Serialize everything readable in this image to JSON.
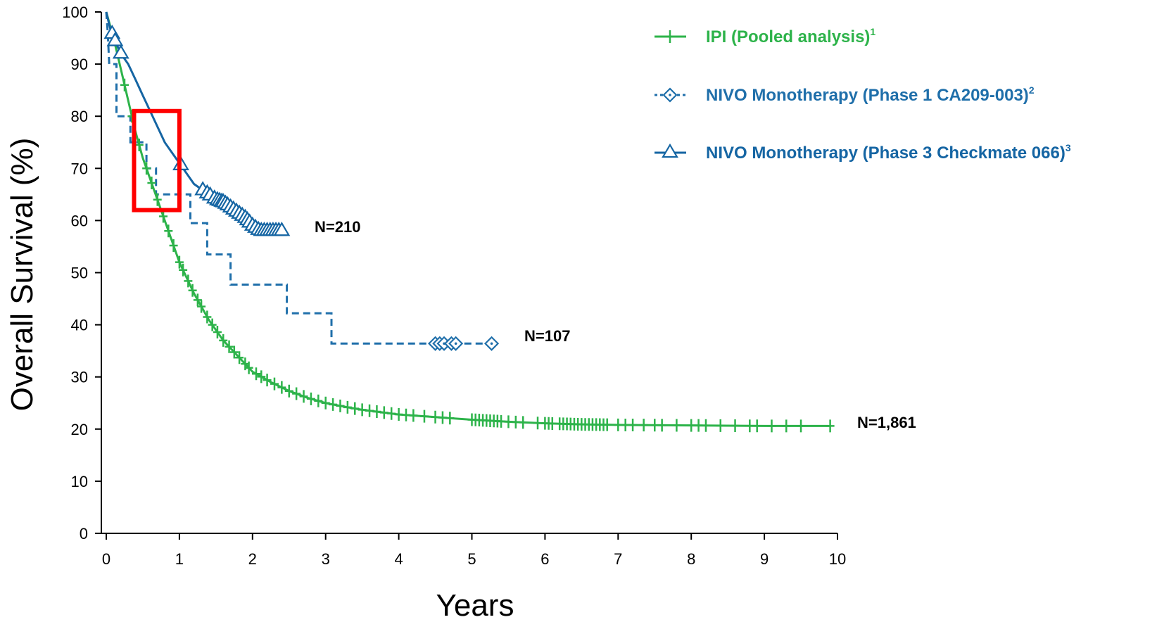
{
  "chart_data": {
    "type": "line",
    "xlabel": "Years",
    "ylabel": "Overall Survival (%)",
    "xlim": [
      0,
      10
    ],
    "ylim": [
      0,
      100
    ],
    "xticks": [
      "0",
      "1",
      "2",
      "3",
      "4",
      "5",
      "6",
      "7",
      "8",
      "9",
      "10"
    ],
    "yticks": [
      "0",
      "10",
      "20",
      "30",
      "40",
      "50",
      "60",
      "70",
      "80",
      "90",
      "100"
    ],
    "grid": false,
    "legend_position": "top-right",
    "series": [
      {
        "name": "IPI (Pooled analysis)",
        "superscript": "1",
        "color": "#2db34a",
        "style": "solid",
        "marker": "plus",
        "n_label": "N=1,861",
        "points": [
          [
            0,
            100
          ],
          [
            0.1,
            95
          ],
          [
            0.2,
            89
          ],
          [
            0.3,
            83
          ],
          [
            0.4,
            77
          ],
          [
            0.5,
            72
          ],
          [
            0.6,
            68
          ],
          [
            0.7,
            64
          ],
          [
            0.8,
            60
          ],
          [
            0.9,
            56
          ],
          [
            1.0,
            52
          ],
          [
            1.2,
            46
          ],
          [
            1.4,
            41
          ],
          [
            1.6,
            37
          ],
          [
            1.8,
            34
          ],
          [
            2.0,
            31
          ],
          [
            2.25,
            29
          ],
          [
            2.5,
            27.3
          ],
          [
            2.75,
            26
          ],
          [
            3.0,
            25
          ],
          [
            3.25,
            24.3
          ],
          [
            3.5,
            23.7
          ],
          [
            4.0,
            22.8
          ],
          [
            4.5,
            22.3
          ],
          [
            5.0,
            21.8
          ],
          [
            5.5,
            21.4
          ],
          [
            6.0,
            21.1
          ],
          [
            6.5,
            20.9
          ],
          [
            7.0,
            20.8
          ],
          [
            8.0,
            20.7
          ],
          [
            9.0,
            20.6
          ],
          [
            9.9,
            20.6
          ]
        ],
        "censor_x": [
          0.25,
          0.35,
          0.45,
          0.55,
          0.62,
          0.7,
          0.78,
          0.85,
          0.92,
          1.0,
          1.05,
          1.12,
          1.18,
          1.25,
          1.3,
          1.38,
          1.45,
          1.52,
          1.6,
          1.68,
          1.75,
          1.82,
          1.9,
          1.95,
          2.05,
          2.12,
          2.2,
          2.3,
          2.4,
          2.5,
          2.6,
          2.7,
          2.8,
          2.9,
          3.0,
          3.1,
          3.2,
          3.3,
          3.4,
          3.5,
          3.6,
          3.7,
          3.8,
          3.9,
          4.0,
          4.1,
          4.2,
          4.35,
          4.5,
          4.6,
          4.7,
          5.0,
          5.05,
          5.1,
          5.15,
          5.2,
          5.25,
          5.3,
          5.35,
          5.4,
          5.5,
          5.6,
          5.7,
          5.9,
          6.0,
          6.05,
          6.1,
          6.2,
          6.25,
          6.3,
          6.35,
          6.4,
          6.45,
          6.5,
          6.55,
          6.6,
          6.65,
          6.7,
          6.75,
          6.8,
          6.85,
          7.0,
          7.1,
          7.2,
          7.35,
          7.5,
          7.6,
          7.8,
          8.0,
          8.1,
          8.2,
          8.4,
          8.6,
          8.8,
          8.9,
          9.1,
          9.3,
          9.5,
          9.9
        ]
      },
      {
        "name": "NIVO Monotherapy (Phase 1 CA209-003)",
        "superscript": "2",
        "color": "#1f6faa",
        "style": "dashed",
        "marker": "diamond",
        "n_label": "N=107",
        "points": [
          [
            0,
            100
          ],
          [
            0.02,
            96
          ],
          [
            0.04,
            90
          ],
          [
            0.14,
            90
          ],
          [
            0.14,
            80
          ],
          [
            0.33,
            80
          ],
          [
            0.33,
            75
          ],
          [
            0.55,
            75
          ],
          [
            0.55,
            70
          ],
          [
            0.68,
            70
          ],
          [
            0.68,
            65
          ],
          [
            1.15,
            65
          ],
          [
            1.15,
            59.5
          ],
          [
            1.38,
            59.5
          ],
          [
            1.38,
            53.5
          ],
          [
            1.7,
            53.5
          ],
          [
            1.7,
            47.7
          ],
          [
            2.47,
            47.7
          ],
          [
            2.47,
            42.2
          ],
          [
            3.08,
            42.2
          ],
          [
            3.08,
            36.4
          ],
          [
            5.27,
            36.4
          ]
        ],
        "censor_x": [
          4.5,
          4.56,
          4.62,
          4.72,
          4.78,
          5.27
        ]
      },
      {
        "name": "NIVO Monotherapy (Phase 3 Checkmate 066)",
        "superscript": "3",
        "color": "#1565a3",
        "style": "solid",
        "marker": "triangle",
        "n_label": "N=210",
        "points": [
          [
            0,
            100
          ],
          [
            0.05,
            97
          ],
          [
            0.1,
            95
          ],
          [
            0.2,
            92
          ],
          [
            0.3,
            90
          ],
          [
            0.4,
            87
          ],
          [
            0.5,
            84
          ],
          [
            0.6,
            81
          ],
          [
            0.7,
            78
          ],
          [
            0.8,
            75
          ],
          [
            0.9,
            73
          ],
          [
            1.0,
            71
          ],
          [
            1.1,
            69
          ],
          [
            1.2,
            67
          ],
          [
            1.3,
            66
          ],
          [
            1.4,
            65
          ],
          [
            1.5,
            64
          ],
          [
            1.6,
            63.5
          ],
          [
            1.7,
            62.5
          ],
          [
            1.8,
            61.5
          ],
          [
            1.9,
            60.5
          ],
          [
            2.0,
            59
          ],
          [
            2.1,
            58
          ],
          [
            2.45,
            58
          ]
        ],
        "censor_x": [
          0.08,
          0.12,
          0.2,
          1.02,
          1.32,
          1.38,
          1.42,
          1.48,
          1.52,
          1.55,
          1.58,
          1.6,
          1.63,
          1.66,
          1.7,
          1.74,
          1.78,
          1.82,
          1.86,
          1.9,
          1.93,
          1.96,
          2.0,
          2.04,
          2.08,
          2.12,
          2.16,
          2.2,
          2.24,
          2.28,
          2.32,
          2.36,
          2.4
        ]
      }
    ],
    "annotations": [
      {
        "type": "highlight-box",
        "color": "#ff0000",
        "x_range": [
          0.38,
          1.0
        ],
        "y_range": [
          62,
          81
        ]
      }
    ]
  }
}
